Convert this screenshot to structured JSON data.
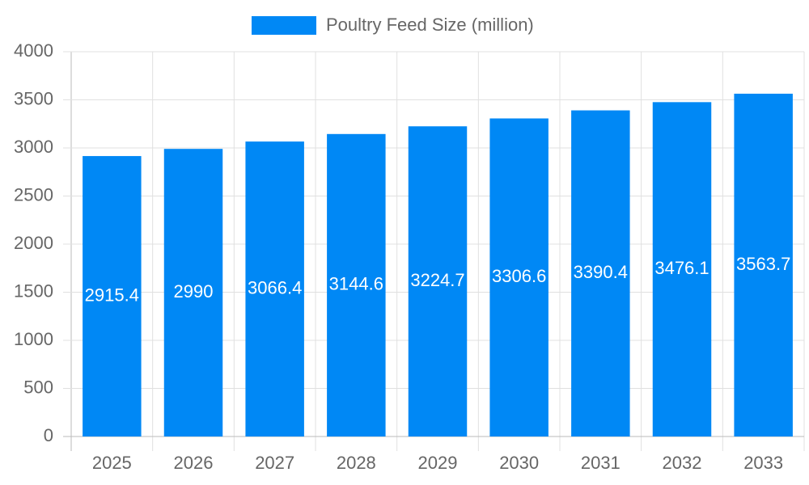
{
  "chart_data": {
    "type": "bar",
    "categories": [
      "2025",
      "2026",
      "2027",
      "2028",
      "2029",
      "2030",
      "2031",
      "2032",
      "2033"
    ],
    "series": [
      {
        "name": "Poultry Feed Size (million)",
        "color": "#0088f5",
        "values": [
          2915.4,
          2990,
          3066.4,
          3144.6,
          3224.7,
          3306.6,
          3390.4,
          3476.1,
          3563.7
        ]
      }
    ],
    "ylim": [
      0,
      4000
    ],
    "yticks": [
      0,
      500,
      1000,
      1500,
      2000,
      2500,
      3000,
      3500,
      4000
    ],
    "grid": true,
    "legend": "top"
  }
}
